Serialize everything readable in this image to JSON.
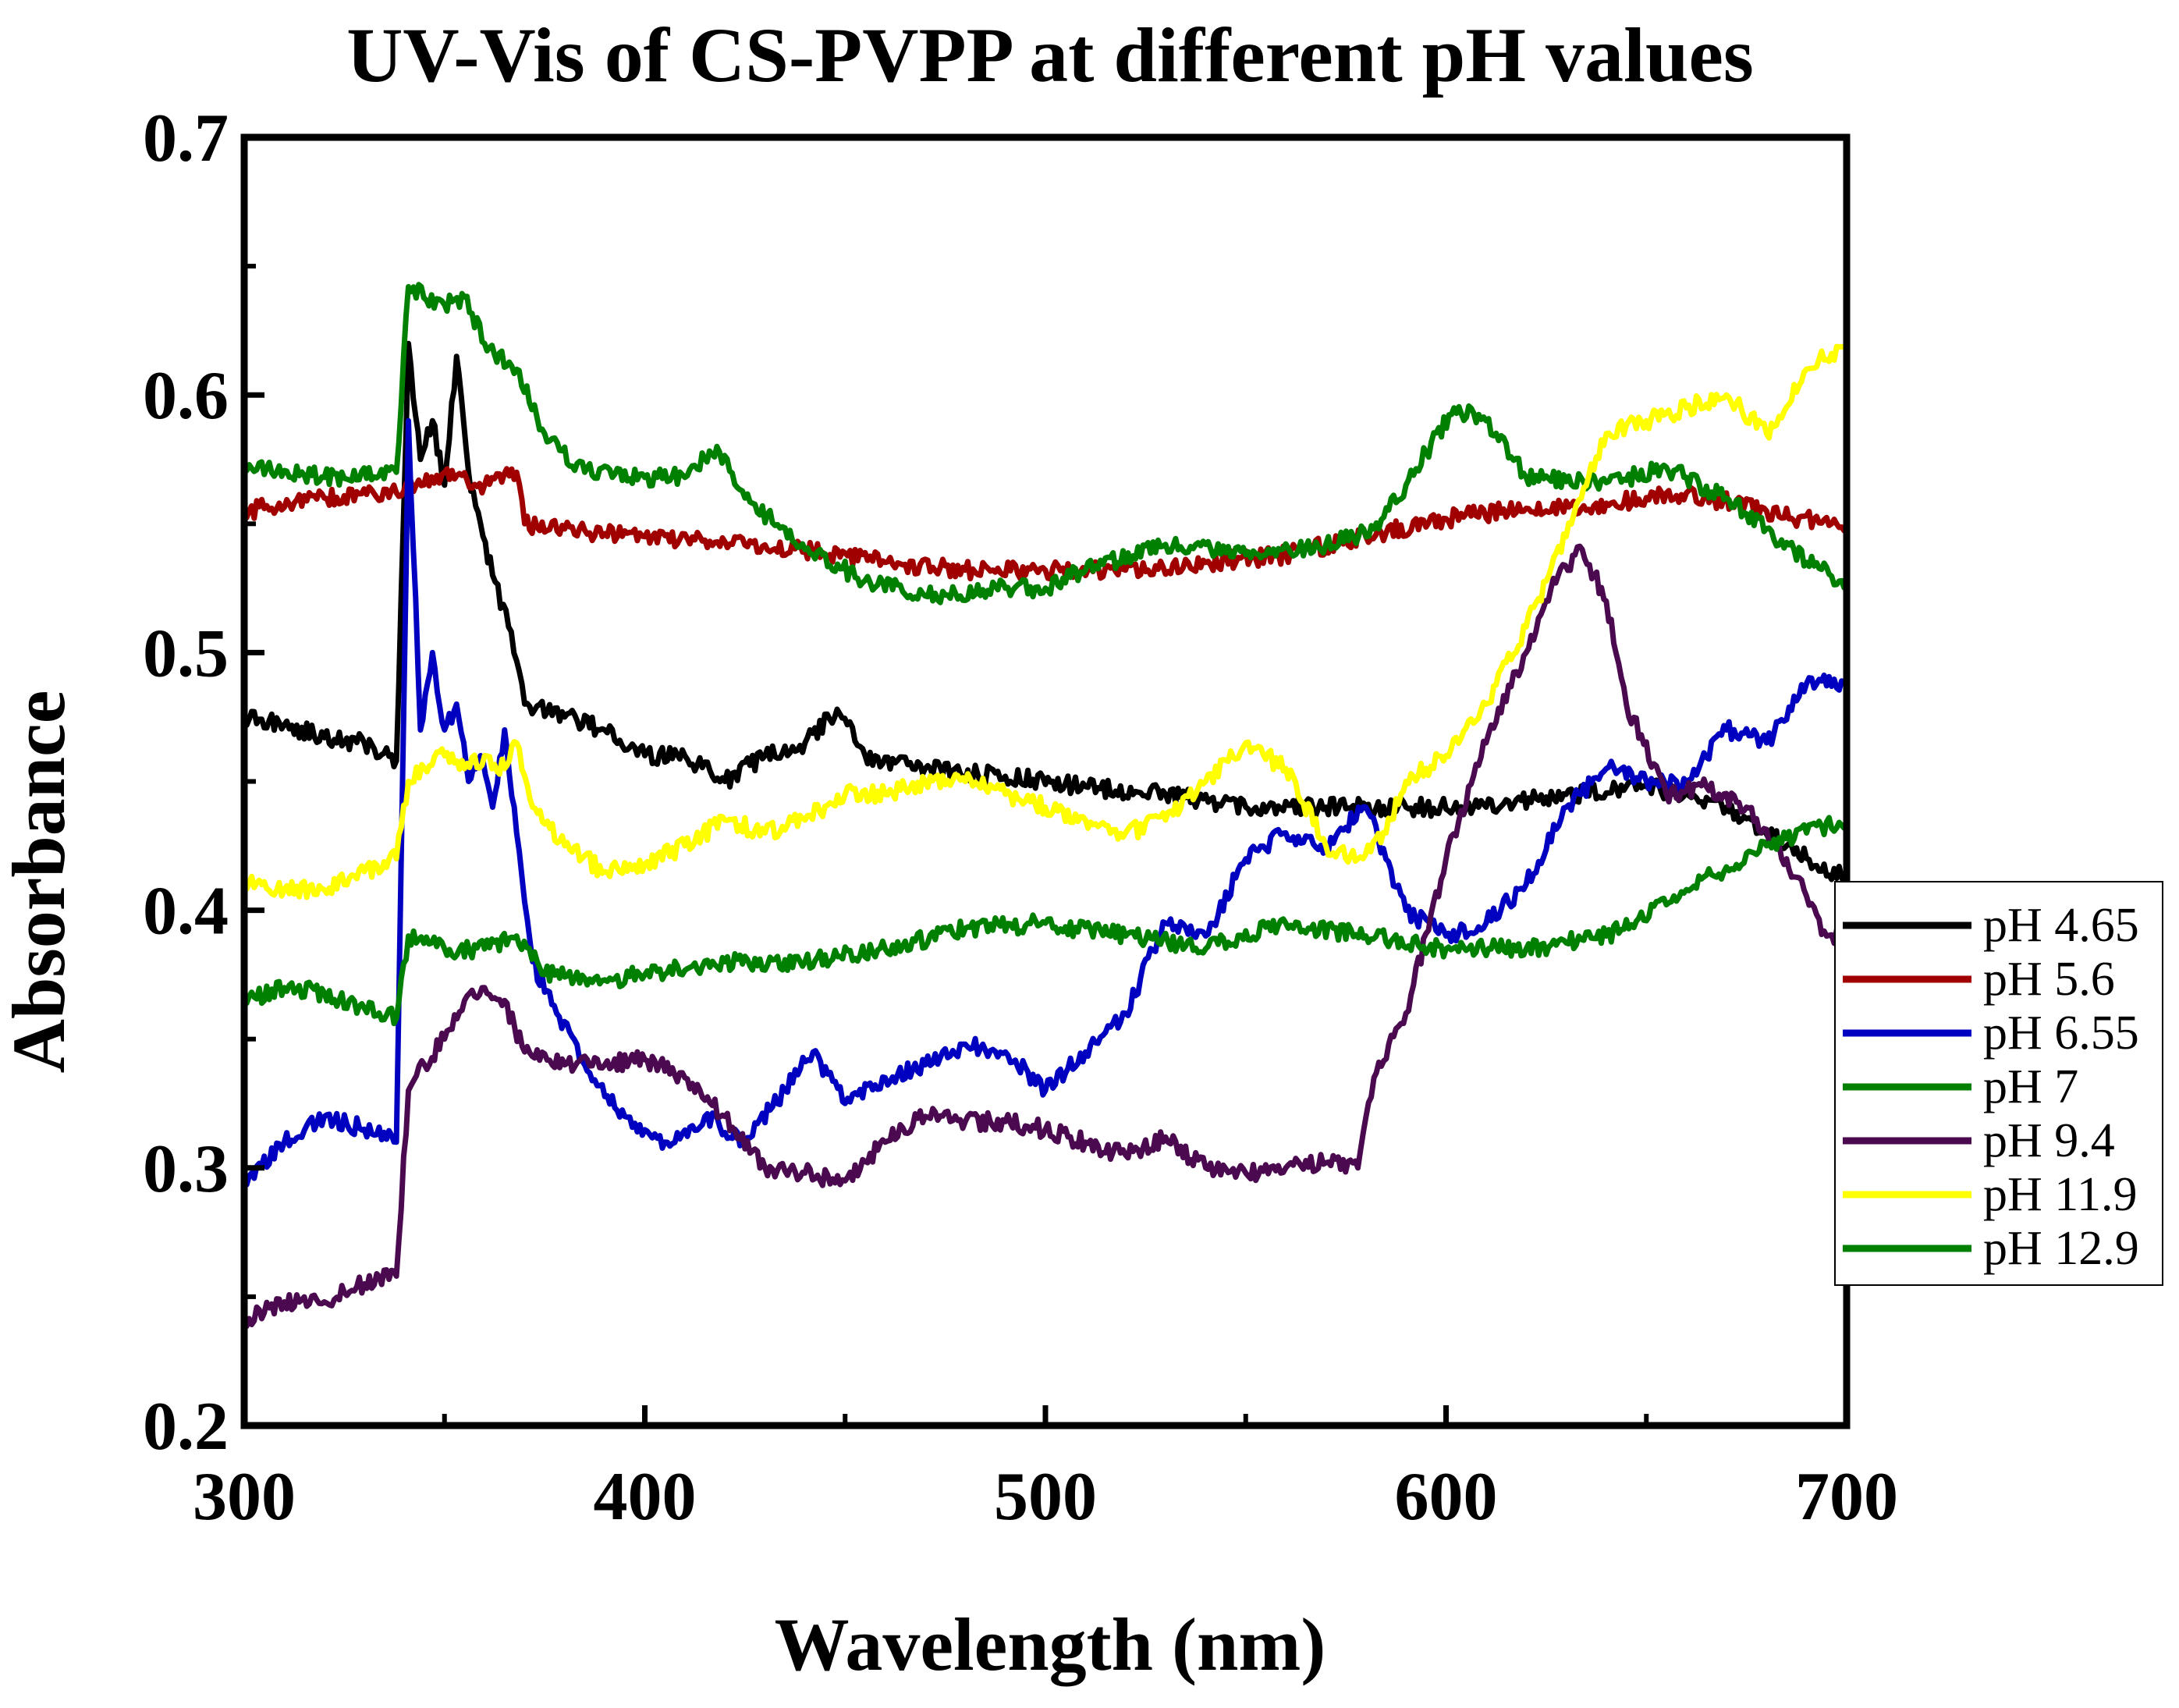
{
  "chart_data": {
    "type": "line",
    "title": "UV-Vis of CS-PVPP at different pH values",
    "xlabel": "Wavelength (nm)",
    "ylabel": "Absorbance",
    "xlim": [
      300,
      700
    ],
    "ylim": [
      0.2,
      0.7
    ],
    "xticks": [
      300,
      400,
      500,
      600,
      700
    ],
    "xtick_labels": [
      "300",
      "400",
      "500",
      "600",
      "700"
    ],
    "yticks": [
      0.2,
      0.3,
      0.4,
      0.5,
      0.6,
      0.7
    ],
    "ytick_labels": [
      "0.2",
      "0.3",
      "0.4",
      "0.5",
      "0.6",
      "0.7"
    ],
    "grid": false,
    "legend_position": "right-outside",
    "series": [
      {
        "name": "pH 4.65",
        "color": "#000000",
        "x": [
          300,
          310,
          320,
          330,
          338,
          341,
          344,
          347,
          350,
          353,
          356,
          359,
          362,
          366,
          370,
          380,
          390,
          400,
          410,
          420,
          430,
          440,
          448,
          455,
          470,
          490,
          510,
          530,
          550,
          570,
          590,
          610,
          630,
          650,
          670,
          685,
          700
        ],
        "y": [
          0.475,
          0.472,
          0.467,
          0.465,
          0.458,
          0.62,
          0.575,
          0.59,
          0.565,
          0.615,
          0.57,
          0.55,
          0.53,
          0.51,
          0.48,
          0.475,
          0.47,
          0.46,
          0.46,
          0.45,
          0.46,
          0.465,
          0.478,
          0.46,
          0.455,
          0.452,
          0.448,
          0.445,
          0.44,
          0.44,
          0.44,
          0.44,
          0.445,
          0.448,
          0.44,
          0.425,
          0.412
        ]
      },
      {
        "name": "pH 5.6",
        "color": "#a00000",
        "x": [
          300,
          320,
          338,
          341,
          350,
          360,
          368,
          370,
          380,
          400,
          420,
          440,
          460,
          480,
          500,
          520,
          540,
          560,
          580,
          600,
          620,
          640,
          660,
          680,
          700
        ],
        "y": [
          0.555,
          0.56,
          0.562,
          0.565,
          0.57,
          0.565,
          0.57,
          0.55,
          0.548,
          0.545,
          0.543,
          0.54,
          0.535,
          0.532,
          0.532,
          0.532,
          0.535,
          0.538,
          0.545,
          0.552,
          0.556,
          0.558,
          0.562,
          0.555,
          0.548
        ]
      },
      {
        "name": "pH 6.55",
        "color": "#0000c0",
        "x": [
          300,
          310,
          320,
          330,
          338,
          341,
          344,
          347,
          350,
          353,
          356,
          359,
          362,
          365,
          368,
          372,
          378,
          385,
          395,
          405,
          415,
          425,
          435,
          442,
          450,
          460,
          470,
          480,
          490,
          500,
          510,
          520,
          530,
          540,
          550,
          560,
          570,
          580,
          590,
          600,
          610,
          620,
          630,
          640,
          650,
          660,
          670,
          680,
          690,
          700
        ],
        "y": [
          0.295,
          0.31,
          0.32,
          0.315,
          0.31,
          0.59,
          0.47,
          0.5,
          0.47,
          0.48,
          0.45,
          0.46,
          0.44,
          0.47,
          0.43,
          0.38,
          0.36,
          0.34,
          0.32,
          0.31,
          0.32,
          0.31,
          0.33,
          0.345,
          0.325,
          0.335,
          0.34,
          0.348,
          0.345,
          0.33,
          0.345,
          0.36,
          0.395,
          0.39,
          0.42,
          0.43,
          0.425,
          0.44,
          0.4,
          0.39,
          0.395,
          0.41,
          0.44,
          0.455,
          0.45,
          0.45,
          0.47,
          0.465,
          0.488,
          0.488
        ]
      },
      {
        "name": "pH 7",
        "color": "#008000",
        "x": [
          300,
          320,
          338,
          341,
          350,
          355,
          360,
          368,
          375,
          385,
          400,
          410,
          418,
          425,
          440,
          455,
          470,
          490,
          500,
          510,
          530,
          550,
          570,
          582,
          590,
          602,
          610,
          620,
          640,
          655,
          670,
          690,
          700
        ],
        "y": [
          0.573,
          0.568,
          0.57,
          0.642,
          0.635,
          0.638,
          0.62,
          0.61,
          0.585,
          0.57,
          0.568,
          0.568,
          0.58,
          0.56,
          0.54,
          0.528,
          0.522,
          0.525,
          0.525,
          0.532,
          0.542,
          0.538,
          0.542,
          0.548,
          0.565,
          0.595,
          0.59,
          0.568,
          0.566,
          0.572,
          0.56,
          0.535,
          0.527
        ]
      },
      {
        "name": "pH 9.4",
        "color": "#4b0a50",
        "x": [
          300,
          310,
          320,
          330,
          338,
          341,
          345,
          350,
          355,
          360,
          365,
          370,
          380,
          390,
          400,
          410,
          420,
          430,
          440,
          450,
          460,
          470,
          480,
          490,
          500,
          510,
          520,
          530,
          540,
          550,
          560,
          570,
          578,
          582,
          590,
          600,
          610,
          620,
          628,
          634,
          640,
          645,
          655,
          665,
          675,
          685,
          695,
          700
        ],
        "y": [
          0.24,
          0.248,
          0.248,
          0.255,
          0.258,
          0.33,
          0.34,
          0.35,
          0.365,
          0.37,
          0.365,
          0.345,
          0.34,
          0.34,
          0.342,
          0.335,
          0.32,
          0.3,
          0.298,
          0.295,
          0.31,
          0.32,
          0.318,
          0.318,
          0.315,
          0.31,
          0.305,
          0.312,
          0.3,
          0.298,
          0.3,
          0.302,
          0.3,
          0.335,
          0.36,
          0.42,
          0.465,
          0.5,
          0.53,
          0.54,
          0.52,
          0.48,
          0.445,
          0.448,
          0.44,
          0.42,
          0.39,
          0.39
        ]
      },
      {
        "name": "pH 11.9",
        "color": "#ffff00",
        "x": [
          300,
          310,
          320,
          330,
          338,
          341,
          345,
          350,
          355,
          360,
          365,
          368,
          372,
          380,
          390,
          400,
          410,
          420,
          430,
          440,
          450,
          460,
          470,
          480,
          490,
          500,
          510,
          520,
          530,
          540,
          550,
          560,
          570,
          578,
          585,
          590,
          600,
          610,
          620,
          630,
          640,
          650,
          660,
          670,
          680,
          690,
          700
        ],
        "y": [
          0.41,
          0.408,
          0.408,
          0.415,
          0.42,
          0.45,
          0.455,
          0.46,
          0.455,
          0.46,
          0.455,
          0.465,
          0.44,
          0.425,
          0.415,
          0.418,
          0.425,
          0.435,
          0.43,
          0.435,
          0.445,
          0.445,
          0.45,
          0.45,
          0.445,
          0.44,
          0.435,
          0.43,
          0.435,
          0.45,
          0.465,
          0.455,
          0.425,
          0.42,
          0.43,
          0.45,
          0.46,
          0.48,
          0.51,
          0.545,
          0.585,
          0.59,
          0.595,
          0.6,
          0.585,
          0.61,
          0.62
        ]
      },
      {
        "name": "pH 12.9",
        "color": "#008000",
        "x": [
          300,
          310,
          320,
          330,
          338,
          341,
          350,
          360,
          368,
          375,
          390,
          400,
          420,
          440,
          460,
          480,
          500,
          520,
          540,
          560,
          580,
          600,
          620,
          640,
          660,
          680,
          690,
          700
        ],
        "y": [
          0.365,
          0.37,
          0.368,
          0.362,
          0.358,
          0.39,
          0.385,
          0.385,
          0.39,
          0.375,
          0.373,
          0.375,
          0.38,
          0.38,
          0.385,
          0.393,
          0.395,
          0.39,
          0.385,
          0.395,
          0.39,
          0.385,
          0.385,
          0.39,
          0.408,
          0.425,
          0.43,
          0.435
        ]
      }
    ]
  }
}
